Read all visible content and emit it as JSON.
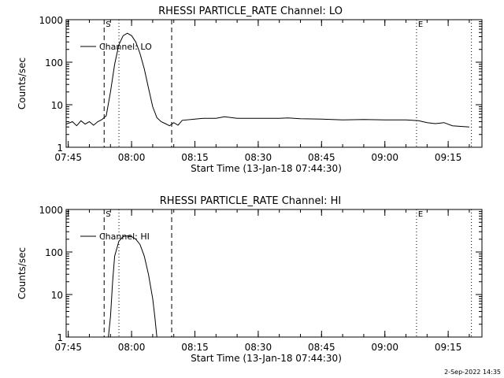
{
  "footer_timestamp": "2-Sep-2022 14:35",
  "chart_data": [
    {
      "type": "line",
      "title": "RHESSI PARTICLE_RATE Channel: LO",
      "xlabel": "Start Time (13-Jan-18 07:44:30)",
      "ylabel": "Counts/sec",
      "yscale": "log",
      "ylim": [
        1,
        1000
      ],
      "xlim": [
        "07:44:30",
        "09:23:00"
      ],
      "x_ticks": [
        "07:45",
        "08:00",
        "08:15",
        "08:30",
        "08:45",
        "09:00",
        "09:15"
      ],
      "y_ticks": [
        "1",
        "10",
        "100",
        "1000"
      ],
      "legend": "top-left",
      "series": [
        {
          "name": "Channel: LO",
          "x": [
            "07:44:30",
            "07:46:00",
            "07:47:00",
            "07:48:00",
            "07:49:00",
            "07:50:00",
            "07:51:00",
            "07:52:00",
            "07:53:00",
            "07:54:00",
            "07:55:00",
            "07:56:00",
            "07:57:00",
            "07:58:00",
            "07:59:00",
            "08:00:00",
            "08:01:00",
            "08:02:00",
            "08:03:00",
            "08:04:00",
            "08:05:00",
            "08:06:00",
            "08:07:00",
            "08:08:00",
            "08:09:00",
            "08:10:00",
            "08:11:00",
            "08:12:00",
            "08:15:00",
            "08:17:00",
            "08:20:00",
            "08:22:00",
            "08:25:00",
            "08:30:00",
            "08:35:00",
            "08:37:00",
            "08:40:00",
            "08:45:00",
            "08:50:00",
            "08:55:00",
            "09:00:00",
            "09:05:00",
            "09:08:00",
            "09:10:00",
            "09:12:00",
            "09:14:00",
            "09:16:00",
            "09:20:00"
          ],
          "y": [
            3.5,
            4,
            3.2,
            4.2,
            3.5,
            4,
            3.3,
            4,
            4.5,
            5.5,
            20,
            90,
            260,
            420,
            480,
            420,
            300,
            160,
            70,
            25,
            9,
            5,
            4,
            3.6,
            3.2,
            3.8,
            3.3,
            4.3,
            4.6,
            4.8,
            4.8,
            5.2,
            4.8,
            4.8,
            4.8,
            4.9,
            4.7,
            4.6,
            4.4,
            4.5,
            4.4,
            4.4,
            4.2,
            3.8,
            3.6,
            3.8,
            3.2,
            3
          ]
        }
      ],
      "vlines": [
        {
          "time": "07:53:30",
          "style": "dashed",
          "label": "S"
        },
        {
          "time": "07:57:00",
          "style": "dotted",
          "label": ""
        },
        {
          "time": "08:09:30",
          "style": "dashed",
          "label": ""
        },
        {
          "time": "09:07:30",
          "style": "dotted",
          "label": "E"
        },
        {
          "time": "09:20:30",
          "style": "dotted",
          "label": ""
        }
      ]
    },
    {
      "type": "line",
      "title": "RHESSI PARTICLE_RATE Channel: HI",
      "xlabel": "Start Time (13-Jan-18 07:44:30)",
      "ylabel": "Counts/sec",
      "yscale": "log",
      "ylim": [
        1,
        1000
      ],
      "xlim": [
        "07:44:30",
        "09:23:00"
      ],
      "x_ticks": [
        "07:45",
        "08:00",
        "08:15",
        "08:30",
        "08:45",
        "09:00",
        "09:15"
      ],
      "y_ticks": [
        "1",
        "10",
        "100",
        "1000"
      ],
      "legend": "top-left",
      "series": [
        {
          "name": "Channel: HI",
          "x": [
            "07:54:30",
            "07:55:00",
            "07:55:30",
            "07:56:00",
            "07:57:00",
            "07:58:00",
            "07:59:00",
            "08:00:00",
            "08:01:00",
            "08:02:00",
            "08:03:00",
            "08:04:00",
            "08:05:00",
            "08:05:30",
            "08:06:00"
          ],
          "y": [
            1,
            3,
            20,
            80,
            180,
            230,
            240,
            230,
            200,
            150,
            80,
            30,
            8,
            3,
            1
          ]
        }
      ],
      "vlines": [
        {
          "time": "07:53:30",
          "style": "dashed",
          "label": "S"
        },
        {
          "time": "07:57:00",
          "style": "dotted",
          "label": ""
        },
        {
          "time": "08:09:30",
          "style": "dashed",
          "label": ""
        },
        {
          "time": "09:07:30",
          "style": "dotted",
          "label": "E"
        },
        {
          "time": "09:20:30",
          "style": "dotted",
          "label": ""
        }
      ]
    }
  ]
}
